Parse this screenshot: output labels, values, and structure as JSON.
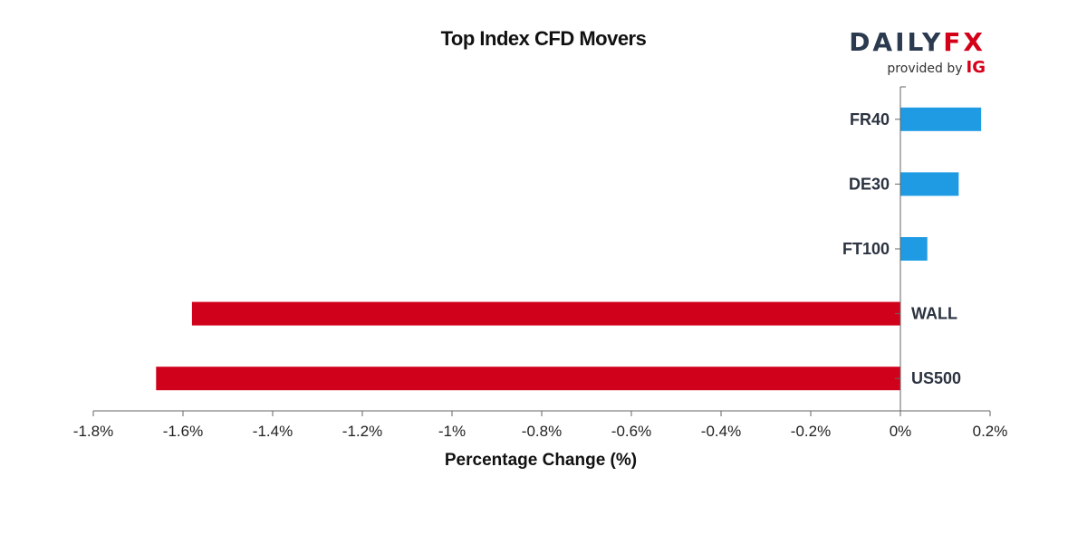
{
  "logo": {
    "brand_main": "DAILY",
    "brand_accent": "FX",
    "provided_by": "provided by",
    "provider": "IG"
  },
  "colors": {
    "positive": "#1f9be3",
    "negative": "#d0021b",
    "axis": "#666666"
  },
  "chart_data": {
    "type": "bar",
    "orientation": "horizontal",
    "title": "Top Index CFD Movers",
    "xlabel": "Percentage Change (%)",
    "ylabel": "",
    "categories": [
      "FR40",
      "DE30",
      "FT100",
      "WALL",
      "US500"
    ],
    "values": [
      0.18,
      0.13,
      0.06,
      -1.58,
      -1.66
    ],
    "xlim": [
      -1.8,
      0.2
    ],
    "xticks": [
      -1.8,
      -1.6,
      -1.4,
      -1.2,
      -1,
      -0.8,
      -0.6,
      -0.4,
      -0.2,
      0,
      0.2
    ],
    "xtick_labels": [
      "-1.8%",
      "-1.6%",
      "-1.4%",
      "-1.2%",
      "-1%",
      "-0.8%",
      "-0.6%",
      "-0.4%",
      "-0.2%",
      "0%",
      "0.2%"
    ],
    "grid": false,
    "legend": "none"
  }
}
